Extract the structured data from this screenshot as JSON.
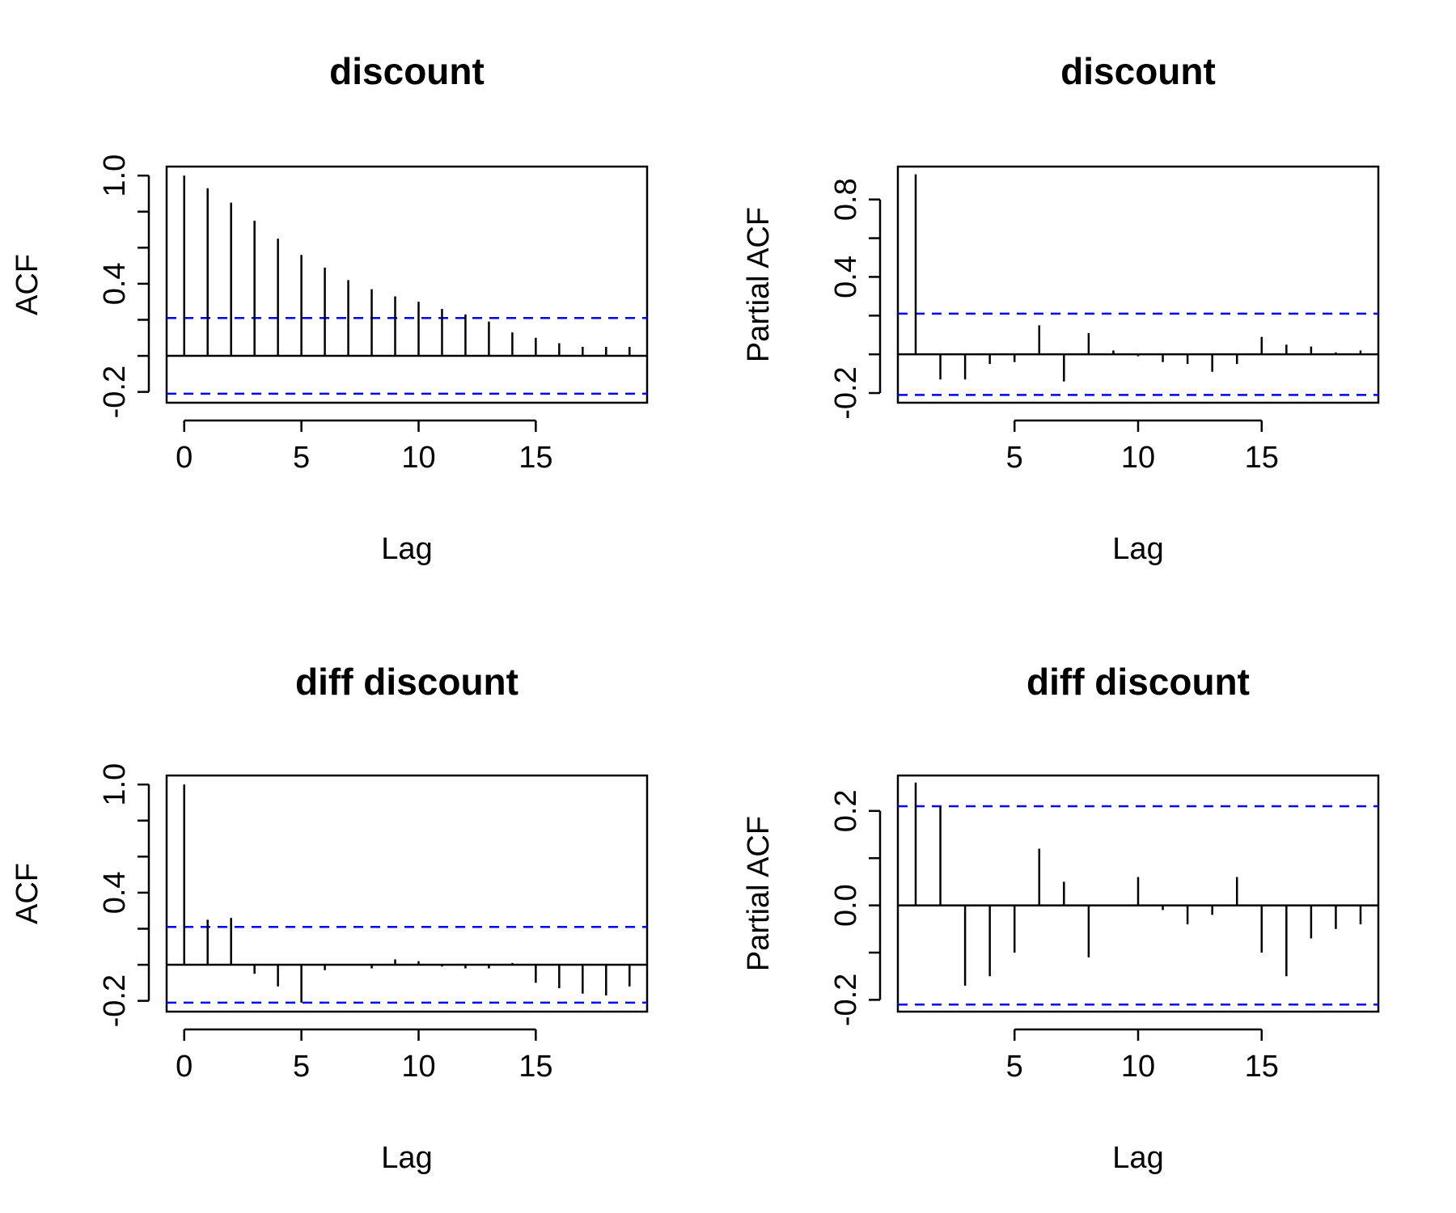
{
  "chart_data": [
    {
      "type": "bar",
      "title": "discount",
      "xlabel": "Lag",
      "ylabel": "ACF",
      "x": [
        0,
        1,
        2,
        3,
        4,
        5,
        6,
        7,
        8,
        9,
        10,
        11,
        12,
        13,
        14,
        15,
        16,
        17,
        18,
        19
      ],
      "values": [
        1.0,
        0.93,
        0.85,
        0.75,
        0.65,
        0.56,
        0.49,
        0.42,
        0.37,
        0.33,
        0.3,
        0.26,
        0.23,
        0.19,
        0.13,
        0.1,
        0.07,
        0.05,
        0.05,
        0.05
      ],
      "conf_band": 0.21,
      "xlim": [
        -0.75,
        19.75
      ],
      "ylim": [
        -0.26,
        1.05
      ],
      "xticks": [
        0,
        5,
        10,
        15
      ],
      "xtick_labels": [
        "0",
        "5",
        "10",
        "15"
      ],
      "yticks": [
        -0.2,
        0.0,
        0.2,
        0.4,
        0.6,
        0.8,
        1.0
      ],
      "ytick_labels": [
        "-0.2",
        "",
        "",
        "0.4",
        "",
        "",
        "1.0"
      ],
      "band_color": "#0000ff"
    },
    {
      "type": "bar",
      "title": "discount",
      "xlabel": "Lag",
      "ylabel": "Partial ACF",
      "x": [
        1,
        2,
        3,
        4,
        5,
        6,
        7,
        8,
        9,
        10,
        11,
        12,
        13,
        14,
        15,
        16,
        17,
        18,
        19
      ],
      "values": [
        0.93,
        -0.13,
        -0.13,
        -0.05,
        -0.04,
        0.15,
        -0.14,
        0.11,
        0.02,
        -0.01,
        -0.04,
        -0.05,
        -0.09,
        -0.05,
        0.09,
        0.05,
        0.04,
        0.01,
        0.02
      ],
      "conf_band": 0.21,
      "xlim": [
        0.28,
        19.72
      ],
      "ylim": [
        -0.25,
        0.97
      ],
      "xticks": [
        5,
        10,
        15
      ],
      "xtick_labels": [
        "5",
        "10",
        "15"
      ],
      "yticks": [
        -0.2,
        0.0,
        0.2,
        0.4,
        0.6,
        0.8
      ],
      "ytick_labels": [
        "-0.2",
        "",
        "",
        "0.4",
        "",
        "0.8"
      ],
      "band_color": "#0000ff"
    },
    {
      "type": "bar",
      "title": "diff discount",
      "xlabel": "Lag",
      "ylabel": "ACF",
      "x": [
        0,
        1,
        2,
        3,
        4,
        5,
        6,
        7,
        8,
        9,
        10,
        11,
        12,
        13,
        14,
        15,
        16,
        17,
        18,
        19
      ],
      "values": [
        1.0,
        0.25,
        0.26,
        -0.05,
        -0.12,
        -0.21,
        -0.03,
        0.0,
        -0.02,
        0.03,
        0.02,
        -0.01,
        -0.02,
        -0.02,
        0.01,
        -0.1,
        -0.13,
        -0.16,
        -0.17,
        -0.12
      ],
      "conf_band": 0.21,
      "xlim": [
        -0.75,
        19.75
      ],
      "ylim": [
        -0.26,
        1.05
      ],
      "xticks": [
        0,
        5,
        10,
        15
      ],
      "xtick_labels": [
        "0",
        "5",
        "10",
        "15"
      ],
      "yticks": [
        -0.2,
        0.0,
        0.2,
        0.4,
        0.6,
        0.8,
        1.0
      ],
      "ytick_labels": [
        "-0.2",
        "",
        "",
        "0.4",
        "",
        "",
        "1.0"
      ],
      "band_color": "#0000ff"
    },
    {
      "type": "bar",
      "title": "diff discount",
      "xlabel": "Lag",
      "ylabel": "Partial ACF",
      "x": [
        1,
        2,
        3,
        4,
        5,
        6,
        7,
        8,
        9,
        10,
        11,
        12,
        13,
        14,
        15,
        16,
        17,
        18,
        19
      ],
      "values": [
        0.26,
        0.21,
        -0.17,
        -0.15,
        -0.1,
        0.12,
        0.05,
        -0.11,
        0.0,
        0.06,
        -0.01,
        -0.04,
        -0.02,
        0.06,
        -0.1,
        -0.15,
        -0.07,
        -0.05,
        -0.04
      ],
      "conf_band": 0.21,
      "xlim": [
        0.28,
        19.72
      ],
      "ylim": [
        -0.225,
        0.275
      ],
      "xticks": [
        5,
        10,
        15
      ],
      "xtick_labels": [
        "5",
        "10",
        "15"
      ],
      "yticks": [
        -0.2,
        -0.1,
        0.0,
        0.1,
        0.2
      ],
      "ytick_labels": [
        "-0.2",
        "",
        "0.0",
        "",
        "0.2"
      ],
      "band_color": "#0000ff"
    }
  ]
}
